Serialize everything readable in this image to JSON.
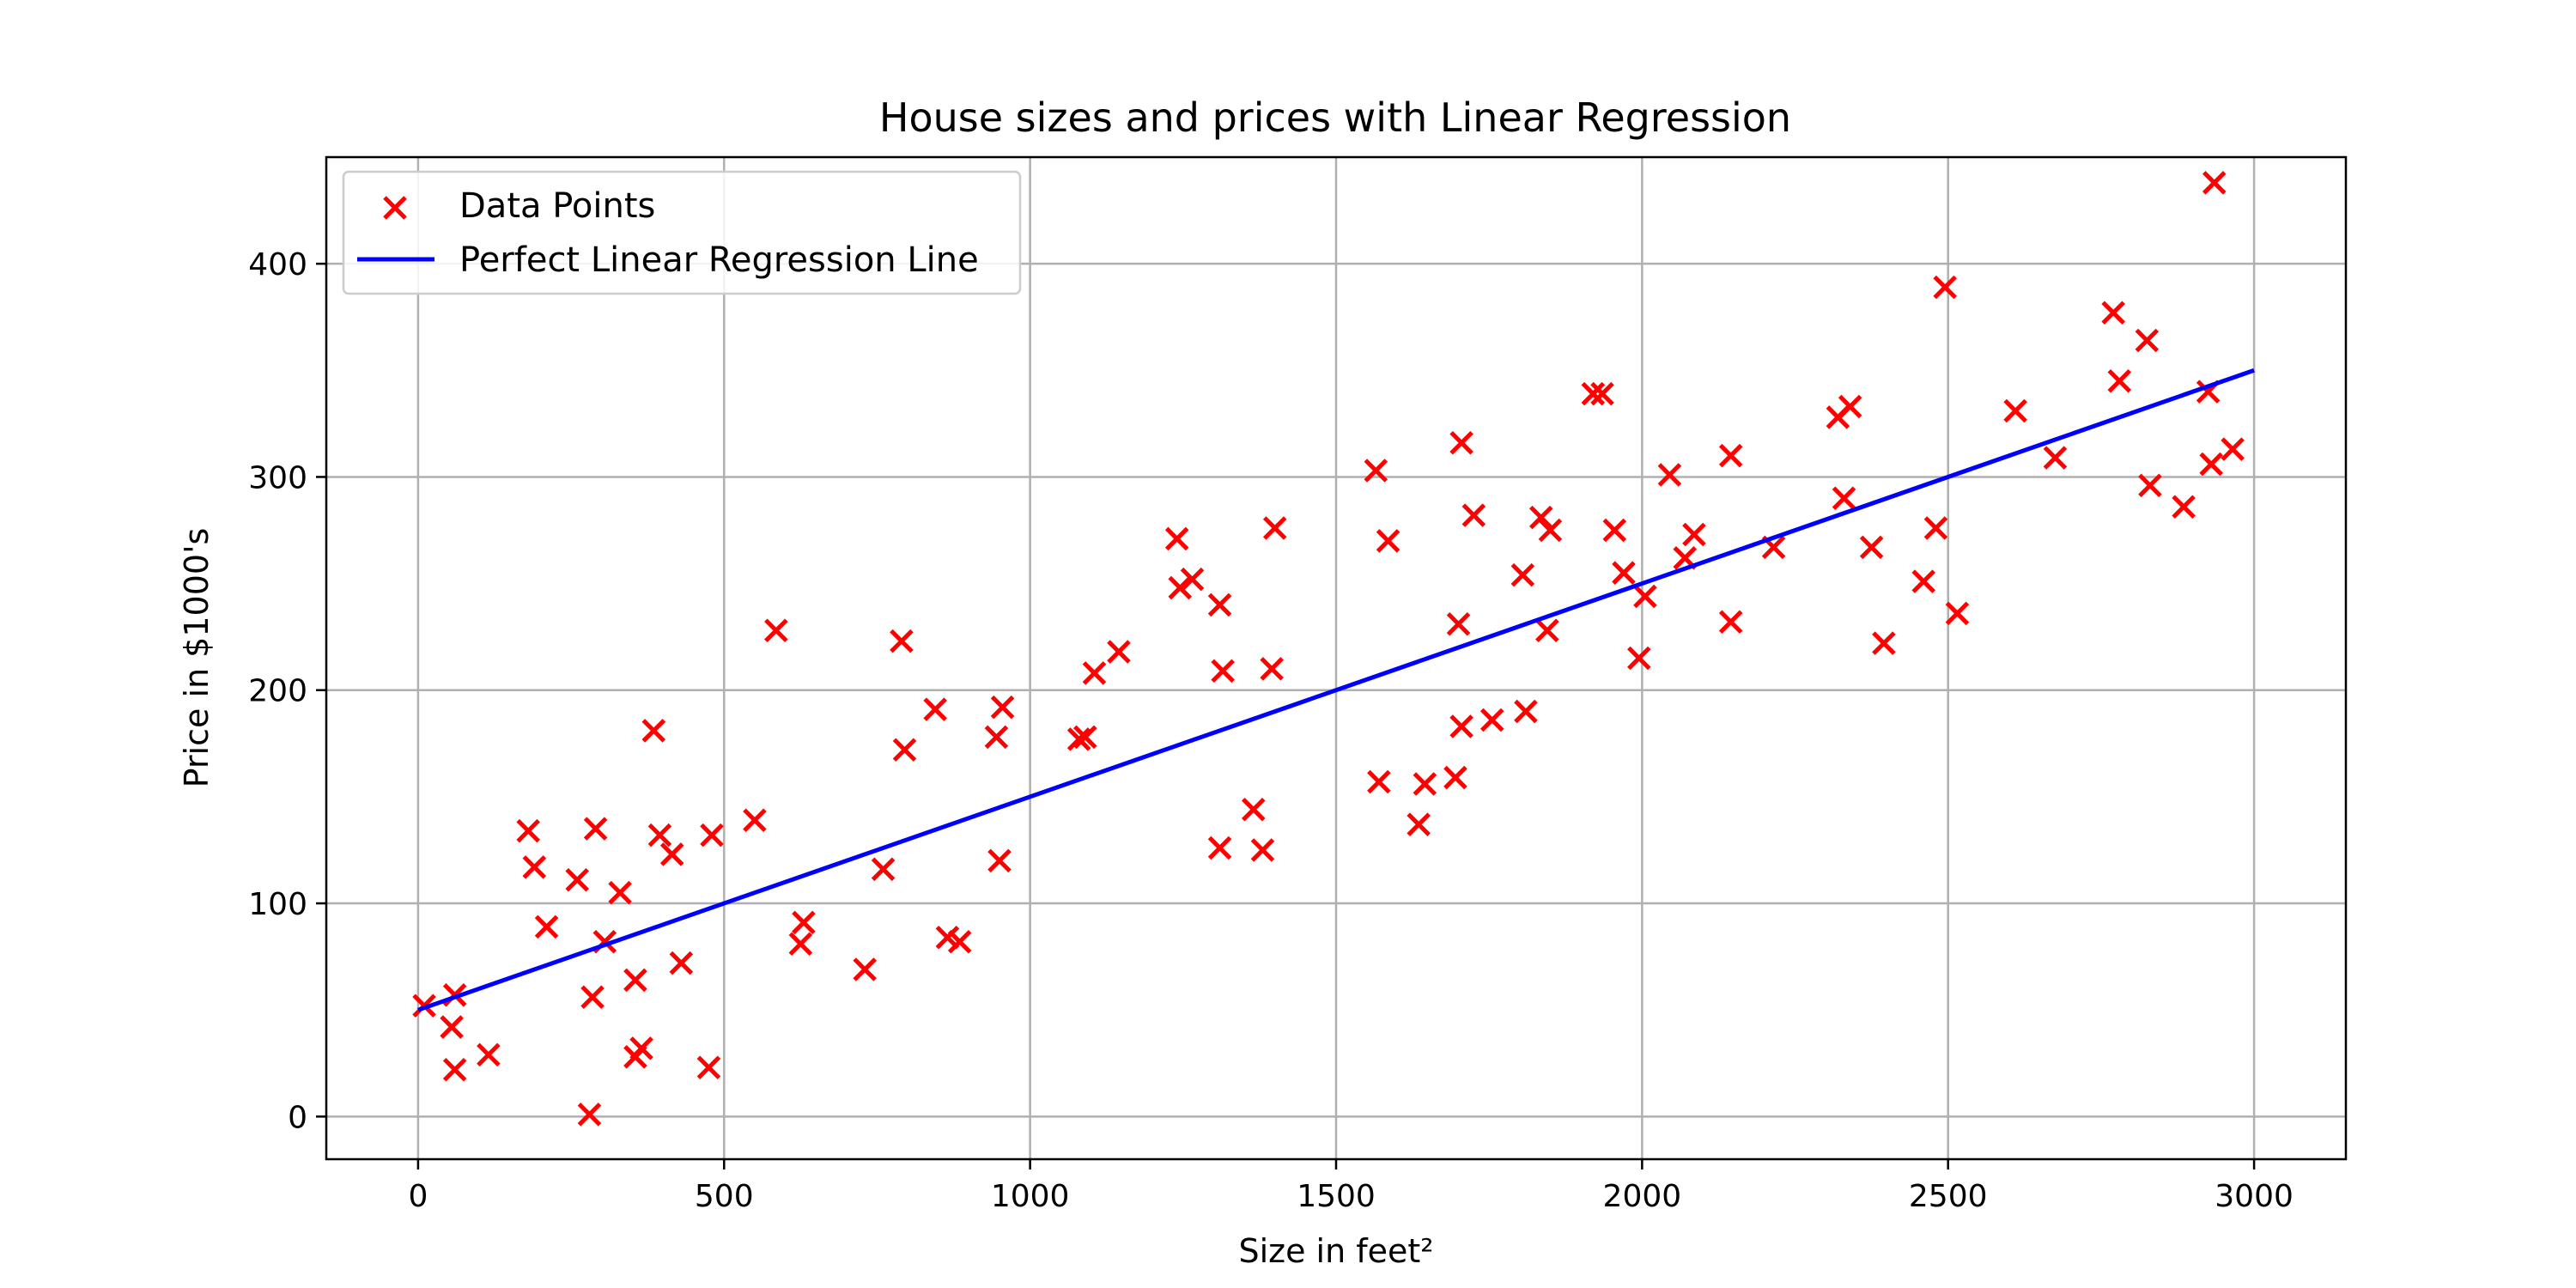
{
  "chart_data": {
    "type": "scatter",
    "title": "House sizes and prices with Linear Regression",
    "xlabel": "Size in feet²",
    "ylabel": "Price in $1000's",
    "xlim": [
      -150,
      3150
    ],
    "ylim": [
      -20,
      450
    ],
    "xticks": [
      0,
      500,
      1000,
      1500,
      2000,
      2500,
      3000
    ],
    "yticks": [
      0,
      100,
      200,
      300,
      400
    ],
    "grid": true,
    "legend_position": "top-left",
    "series": [
      {
        "name": "Data Points",
        "kind": "scatter",
        "marker": "x",
        "color": "#ff0000",
        "points": [
          [
            10,
            52
          ],
          [
            55,
            42
          ],
          [
            60,
            57
          ],
          [
            60,
            22
          ],
          [
            115,
            29
          ],
          [
            180,
            134
          ],
          [
            190,
            117
          ],
          [
            210,
            89
          ],
          [
            260,
            111
          ],
          [
            280,
            1
          ],
          [
            285,
            56
          ],
          [
            290,
            135
          ],
          [
            305,
            82
          ],
          [
            330,
            105
          ],
          [
            355,
            64
          ],
          [
            355,
            28
          ],
          [
            365,
            32
          ],
          [
            385,
            181
          ],
          [
            395,
            132
          ],
          [
            415,
            123
          ],
          [
            430,
            72
          ],
          [
            475,
            23
          ],
          [
            480,
            132
          ],
          [
            550,
            139
          ],
          [
            585,
            228
          ],
          [
            625,
            81
          ],
          [
            630,
            91
          ],
          [
            730,
            69
          ],
          [
            760,
            116
          ],
          [
            790,
            223
          ],
          [
            795,
            172
          ],
          [
            845,
            191
          ],
          [
            865,
            84
          ],
          [
            885,
            82
          ],
          [
            945,
            178
          ],
          [
            950,
            120
          ],
          [
            955,
            192
          ],
          [
            1080,
            177
          ],
          [
            1090,
            178
          ],
          [
            1105,
            208
          ],
          [
            1145,
            218
          ],
          [
            1240,
            271
          ],
          [
            1245,
            248
          ],
          [
            1265,
            252
          ],
          [
            1310,
            126
          ],
          [
            1310,
            240
          ],
          [
            1315,
            209
          ],
          [
            1365,
            144
          ],
          [
            1380,
            125
          ],
          [
            1395,
            210
          ],
          [
            1400,
            276
          ],
          [
            1565,
            303
          ],
          [
            1570,
            157
          ],
          [
            1585,
            270
          ],
          [
            1635,
            137
          ],
          [
            1645,
            156
          ],
          [
            1695,
            159
          ],
          [
            1700,
            231
          ],
          [
            1705,
            316
          ],
          [
            1705,
            183
          ],
          [
            1725,
            282
          ],
          [
            1755,
            186
          ],
          [
            1805,
            254
          ],
          [
            1810,
            190
          ],
          [
            1835,
            281
          ],
          [
            1845,
            228
          ],
          [
            1850,
            275
          ],
          [
            1920,
            339
          ],
          [
            1935,
            339
          ],
          [
            1955,
            275
          ],
          [
            1970,
            255
          ],
          [
            1995,
            215
          ],
          [
            2005,
            244
          ],
          [
            2045,
            301
          ],
          [
            2070,
            262
          ],
          [
            2085,
            273
          ],
          [
            2145,
            310
          ],
          [
            2145,
            232
          ],
          [
            2215,
            267
          ],
          [
            2320,
            328
          ],
          [
            2330,
            290
          ],
          [
            2340,
            333
          ],
          [
            2375,
            267
          ],
          [
            2395,
            222
          ],
          [
            2460,
            251
          ],
          [
            2480,
            276
          ],
          [
            2495,
            389
          ],
          [
            2515,
            236
          ],
          [
            2610,
            331
          ],
          [
            2675,
            309
          ],
          [
            2770,
            377
          ],
          [
            2780,
            345
          ],
          [
            2825,
            364
          ],
          [
            2830,
            296
          ],
          [
            2885,
            286
          ],
          [
            2925,
            340
          ],
          [
            2930,
            306
          ],
          [
            2935,
            438
          ],
          [
            2965,
            313
          ]
        ]
      },
      {
        "name": "Perfect Linear Regression Line",
        "kind": "line",
        "color": "#0000ff",
        "x": [
          0,
          3000
        ],
        "y": [
          50,
          350
        ]
      }
    ]
  }
}
